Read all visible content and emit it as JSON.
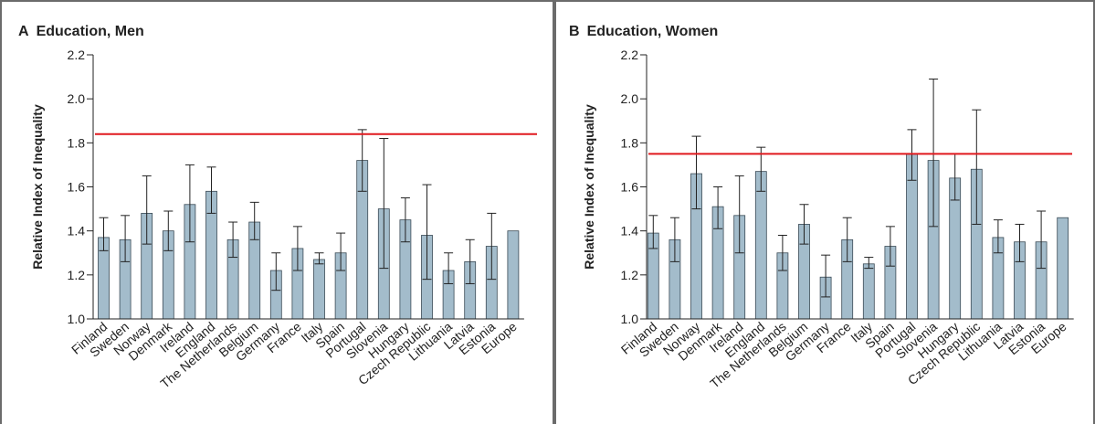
{
  "colors": {
    "bar": "#a3bccb",
    "bar_stroke": "#3a4a55",
    "reference": "#e0191e",
    "axis": "#222222",
    "frame": "#6b6b6b"
  },
  "chart_data": [
    {
      "type": "bar",
      "panel_letter": "A",
      "title": "Education, Men",
      "ylabel": "Relative Index of Inequality",
      "xlabel": "",
      "ylim": [
        1.0,
        2.2
      ],
      "yticks": [
        "1.0",
        "1.2",
        "1.4",
        "1.6",
        "1.8",
        "2.0",
        "2.2"
      ],
      "categories": [
        "Finland",
        "Sweden",
        "Norway",
        "Denmark",
        "Ireland",
        "England",
        "The Netherlands",
        "Belgium",
        "Germany",
        "France",
        "Italy",
        "Spain",
        "Portugal",
        "Slovenia",
        "Hungary",
        "Czech Republic",
        "Lithuania",
        "Latvia",
        "Estonia",
        "Europe"
      ],
      "values": [
        1.37,
        1.36,
        1.48,
        1.4,
        1.52,
        1.58,
        1.36,
        1.44,
        1.22,
        1.32,
        1.27,
        1.3,
        1.72,
        1.5,
        1.45,
        1.38,
        1.22,
        1.26,
        1.33,
        1.4
      ],
      "ci_low": [
        1.31,
        1.26,
        1.34,
        1.31,
        1.35,
        1.48,
        1.28,
        1.36,
        1.13,
        1.22,
        1.25,
        1.22,
        1.58,
        1.23,
        1.35,
        1.18,
        1.16,
        1.16,
        1.18,
        null
      ],
      "ci_high": [
        1.46,
        1.47,
        1.65,
        1.49,
        1.7,
        1.69,
        1.44,
        1.53,
        1.3,
        1.42,
        1.3,
        1.39,
        1.86,
        1.82,
        1.55,
        1.61,
        1.3,
        1.36,
        1.48,
        null
      ],
      "reference_line": 1.84,
      "grid": false,
      "legend": "none"
    },
    {
      "type": "bar",
      "panel_letter": "B",
      "title": "Education, Women",
      "ylabel": "Relative Index of Inequality",
      "xlabel": "",
      "ylim": [
        1.0,
        2.2
      ],
      "yticks": [
        "1.0",
        "1.2",
        "1.4",
        "1.6",
        "1.8",
        "2.0",
        "2.2"
      ],
      "categories": [
        "Finland",
        "Sweden",
        "Norway",
        "Denmark",
        "Ireland",
        "England",
        "The Netherlands",
        "Belgium",
        "Germany",
        "France",
        "Italy",
        "Spain",
        "Portugal",
        "Slovenia",
        "Hungary",
        "Czech Republic",
        "Lithuania",
        "Latvia",
        "Estonia",
        "Europe"
      ],
      "values": [
        1.39,
        1.36,
        1.66,
        1.51,
        1.47,
        1.67,
        1.3,
        1.43,
        1.19,
        1.36,
        1.25,
        1.33,
        1.75,
        1.72,
        1.64,
        1.68,
        1.37,
        1.35,
        1.35,
        1.46
      ],
      "ci_low": [
        1.32,
        1.26,
        1.5,
        1.41,
        1.3,
        1.58,
        1.22,
        1.34,
        1.1,
        1.26,
        1.23,
        1.24,
        1.63,
        1.42,
        1.54,
        1.43,
        1.3,
        1.26,
        1.23,
        null
      ],
      "ci_high": [
        1.47,
        1.46,
        1.83,
        1.6,
        1.65,
        1.78,
        1.38,
        1.52,
        1.29,
        1.46,
        1.28,
        1.42,
        1.86,
        2.09,
        1.75,
        1.95,
        1.45,
        1.43,
        1.49,
        null
      ],
      "reference_line": 1.75,
      "grid": false,
      "legend": "none"
    }
  ]
}
